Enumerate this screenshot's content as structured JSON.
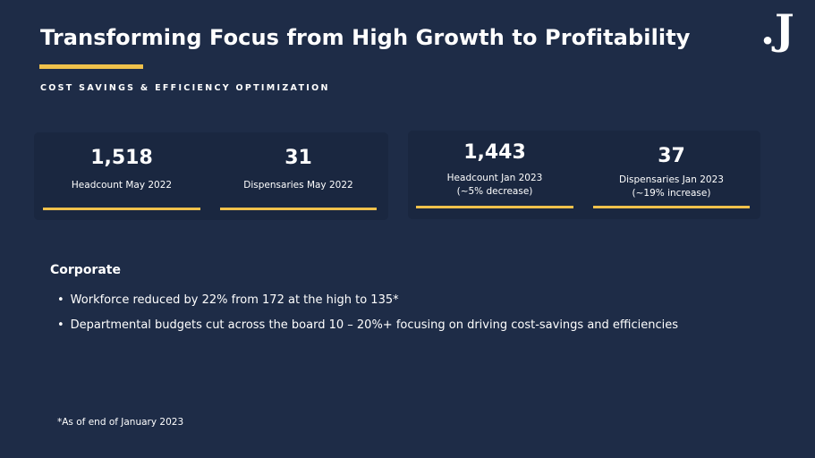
{
  "title": "Transforming Focus from High Growth to Profitability",
  "subtitle": "COST SAVINGS & EFFICIENCY OPTIMIZATION",
  "logo": ".J",
  "colors": {
    "background": "#1e2c47",
    "card": "#1a2740",
    "accent": "#f0c14b",
    "text": "#ffffff"
  },
  "stats_left": [
    {
      "value": "1,518",
      "label": "Headcount May 2022"
    },
    {
      "value": "31",
      "label": "Dispensaries May 2022"
    }
  ],
  "stats_right": [
    {
      "value": "1,443",
      "label": "Headcount Jan 2023",
      "note": "(~5% decrease)"
    },
    {
      "value": "37",
      "label": "Dispensaries Jan 2023",
      "note": "(~19% increase)"
    }
  ],
  "corporate": {
    "heading": "Corporate",
    "bullet_glyph": "•",
    "bullets": [
      "Workforce reduced by 22% from 172 at the high to 135*",
      "Departmental budgets cut across the board 10 – 20%+ focusing on driving cost-savings and efficiencies"
    ]
  },
  "footnote": "*As of end of January 2023"
}
